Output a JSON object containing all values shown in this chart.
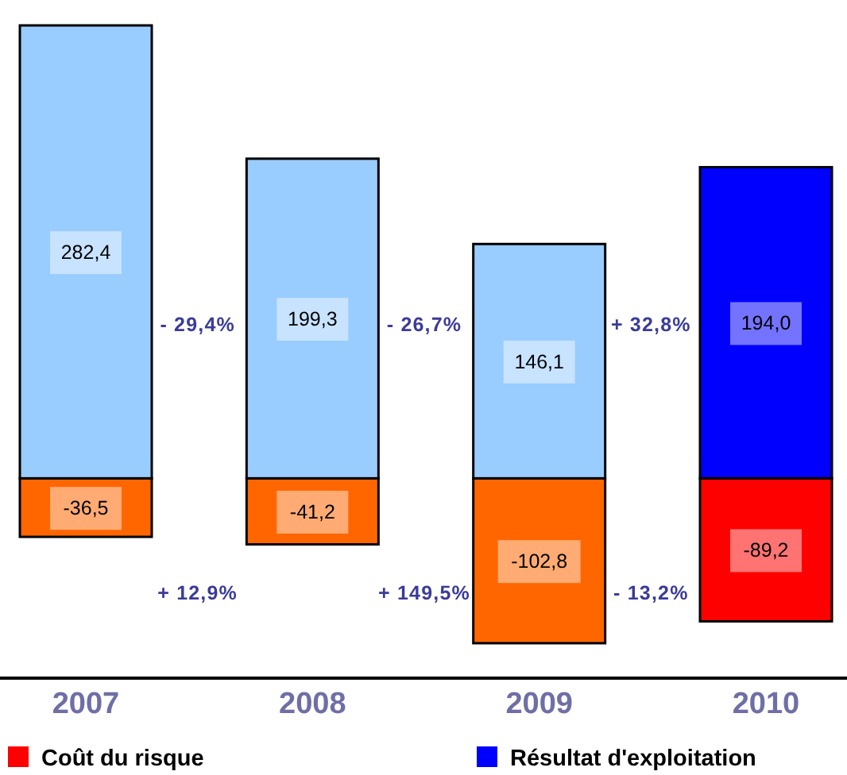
{
  "chart_data": {
    "type": "bar",
    "stacked": true,
    "categories": [
      "2007",
      "2008",
      "2009",
      "2010"
    ],
    "series": [
      {
        "name": "Coût du risque",
        "color": "#ff0000",
        "colors": [
          "#ff6600",
          "#ff6600",
          "#ff6600",
          "#ff0000"
        ],
        "values": [
          -36.5,
          -41.2,
          -102.8,
          -89.2
        ],
        "value_labels": [
          "-36,5",
          "-41,2",
          "-102,8",
          "-89,2"
        ]
      },
      {
        "name": "Résultat d'exploitation",
        "color": "#0000ff",
        "colors": [
          "#99ccff",
          "#99ccff",
          "#99ccff",
          "#0000ff"
        ],
        "values": [
          282.4,
          199.3,
          146.1,
          194
        ],
        "value_labels": [
          "282,4",
          "199,3",
          "146,1",
          "194,0"
        ]
      }
    ],
    "annotations": [
      "- 29,4%",
      "- 26,7%",
      "+ 32,8%",
      "+ 12,9%",
      "+ 149,5%",
      "- 13,2%"
    ],
    "legend": "bottom"
  }
}
